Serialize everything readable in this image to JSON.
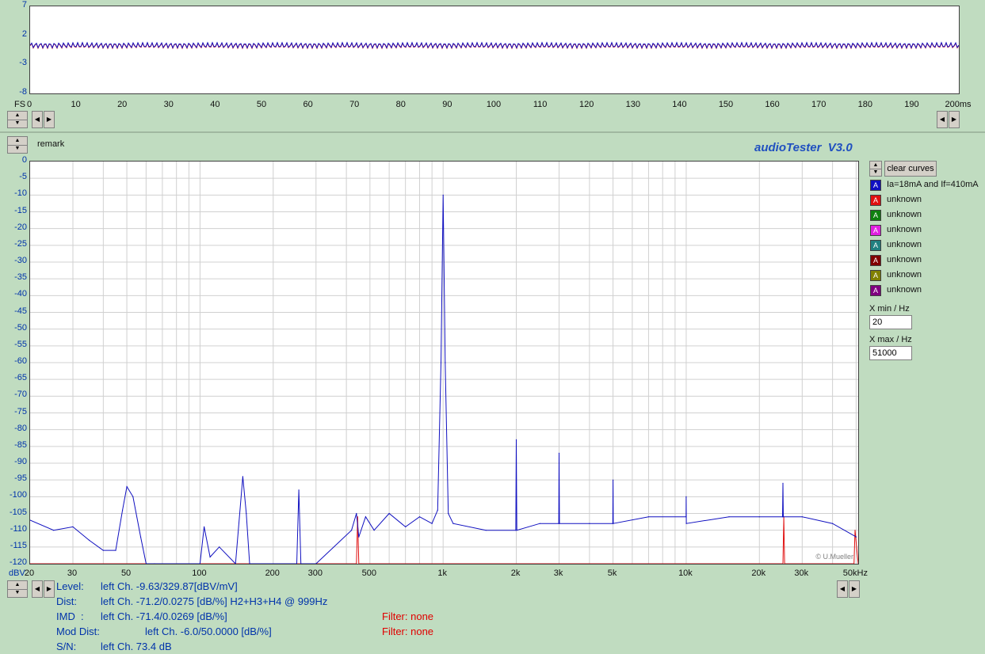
{
  "time_plot": {
    "y_ticks": [
      "7",
      "2",
      "-3",
      "-8"
    ],
    "x_ticks": [
      "0",
      "10",
      "20",
      "30",
      "40",
      "50",
      "60",
      "70",
      "80",
      "90",
      "100",
      "110",
      "120",
      "130",
      "140",
      "150",
      "160",
      "170",
      "180",
      "190",
      "200ms"
    ],
    "fs_label": "FS"
  },
  "remark_label": "remark",
  "app_title": "audioTester  V3.0",
  "spectrum": {
    "y_unit": "dBV",
    "y_ticks": [
      "0",
      "-5",
      "-10",
      "-15",
      "-20",
      "-25",
      "-30",
      "-35",
      "-40",
      "-45",
      "-50",
      "-55",
      "-60",
      "-65",
      "-70",
      "-75",
      "-80",
      "-85",
      "-90",
      "-95",
      "-100",
      "-105",
      "-110",
      "-115",
      "-120"
    ],
    "x_ticks": [
      "20",
      "30",
      "50",
      "100",
      "200",
      "300",
      "500",
      "1k",
      "2k",
      "3k",
      "5k",
      "10k",
      "20k",
      "30k",
      "50kHz"
    ],
    "copyright": "© U.Mueller"
  },
  "legend": {
    "clear_label": "clear curves",
    "items": [
      {
        "glyph": "A",
        "label": "Ia=18mA and If=410mA",
        "color": "#1010c0"
      },
      {
        "glyph": "A",
        "label": "unknown",
        "color": "#e01010"
      },
      {
        "glyph": "A",
        "label": "unknown",
        "color": "#108010"
      },
      {
        "glyph": "A",
        "label": "unknown",
        "color": "#e020e0"
      },
      {
        "glyph": "A",
        "label": "unknown",
        "color": "#208080"
      },
      {
        "glyph": "A",
        "label": "unknown",
        "color": "#800000"
      },
      {
        "glyph": "A",
        "label": "unknown",
        "color": "#808000"
      },
      {
        "glyph": "A",
        "label": "unknown",
        "color": "#800080"
      }
    ]
  },
  "xrange": {
    "min_label": "X min / Hz",
    "min_value": "20",
    "max_label": "X max / Hz",
    "max_value": "51000"
  },
  "results": {
    "level_label": "Level:",
    "level_value": "left Ch. -9.63/329.87[dBV/mV]",
    "dist_label": "Dist:",
    "dist_value": "left Ch. -71.2/0.0275 [dB/%] H2+H3+H4 @ 999Hz",
    "imd_label": "IMD  :",
    "imd_value": "left Ch. -71.4/0.0269 [dB/%]",
    "imd_filter": "Filter: none",
    "moddist_label": "Mod Dist:",
    "moddist_value": "left Ch. -6.0/50.0000 [dB/%]",
    "moddist_filter": "Filter: none",
    "sn_label": "S/N:",
    "sn_value": "left Ch. 73.4 dB"
  },
  "chart_data": [
    {
      "type": "line",
      "title": "",
      "xlabel": "ms",
      "ylabel": "FS",
      "xlim": [
        0,
        200
      ],
      "ylim": [
        -8,
        7
      ],
      "grid": true,
      "series": [
        {
          "name": "Ia=18mA and If=410mA",
          "description_free": true,
          "x": [
            0,
            200
          ],
          "y": [
            0.3,
            0.3
          ]
        }
      ]
    },
    {
      "type": "line",
      "title": "",
      "xlabel": "Hz",
      "ylabel": "dBV",
      "x_scale": "log",
      "xlim": [
        20,
        51000
      ],
      "ylim": [
        -120,
        0
      ],
      "grid": true,
      "series": [
        {
          "name": "Ia=18mA and If=410mA",
          "x": [
            20,
            25,
            30,
            35,
            40,
            45,
            48,
            50,
            53,
            57,
            60,
            65,
            100,
            104,
            110,
            120,
            140,
            150,
            155,
            160,
            250,
            255,
            260,
            300,
            420,
            440,
            450,
            480,
            520,
            600,
            700,
            800,
            900,
            950,
            980,
            1000,
            1020,
            1050,
            1100,
            1500,
            1990,
            2000,
            2010,
            2500,
            2990,
            3000,
            3010,
            4000,
            4990,
            5000,
            5010,
            7000,
            9990,
            10000,
            10010,
            15000,
            20000,
            24900,
            25000,
            25100,
            30000,
            40000,
            50000
          ],
          "y": [
            -107,
            -110,
            -109,
            -113,
            -116,
            -116,
            -104,
            -97,
            -100,
            -112,
            -120,
            -120,
            -120,
            -109,
            -118,
            -115,
            -120,
            -94,
            -105,
            -120,
            -120,
            -98,
            -120,
            -120,
            -110,
            -105,
            -112,
            -106,
            -110,
            -105,
            -109,
            -106,
            -108,
            -104,
            -60,
            -10,
            -60,
            -105,
            -108,
            -110,
            -110,
            -83,
            -110,
            -108,
            -108,
            -87,
            -108,
            -108,
            -108,
            -95,
            -108,
            -106,
            -106,
            -100,
            -108,
            -106,
            -106,
            -106,
            -96,
            -106,
            -106,
            -108,
            -112
          ]
        },
        {
          "name": "unknown",
          "x": [
            20,
            440,
            445,
            450,
            460,
            25000,
            25200,
            25400,
            49000,
            49500,
            51000
          ],
          "y": [
            -120,
            -120,
            -106,
            -120,
            -120,
            -120,
            -106,
            -120,
            -120,
            -110,
            -120
          ]
        }
      ]
    }
  ]
}
